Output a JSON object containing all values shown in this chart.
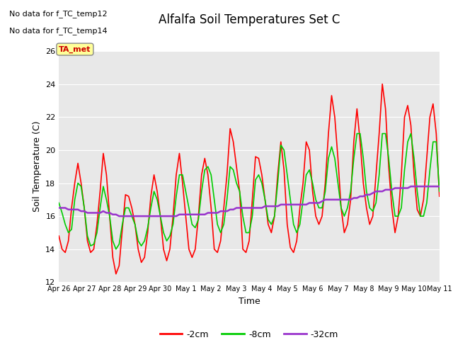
{
  "title": "Alfalfa Soil Temperatures Set C",
  "xlabel": "Time",
  "ylabel": "Soil Temperature (C)",
  "ylim": [
    12,
    26
  ],
  "xlim": [
    0,
    360
  ],
  "no_data_text": [
    "No data for f_TC_temp12",
    "No data for f_TC_temp14"
  ],
  "ta_met_label": "TA_met",
  "ta_met_color": "#cc0000",
  "ta_met_bg": "#ffff99",
  "legend_entries": [
    "-2cm",
    "-8cm",
    "-32cm"
  ],
  "legend_colors": [
    "#ff0000",
    "#00cc00",
    "#9933cc"
  ],
  "x_tick_labels": [
    "Apr 26",
    "Apr 27",
    "Apr 28",
    "Apr 29",
    "Apr 30",
    "May 1",
    "May 2",
    "May 3",
    "May 4",
    "May 5",
    "May 6",
    "May 7",
    "May 8",
    "May 9",
    "May 10",
    "May 11"
  ],
  "x_tick_positions": [
    0,
    24,
    48,
    72,
    96,
    120,
    144,
    168,
    192,
    216,
    240,
    264,
    288,
    312,
    336,
    360
  ],
  "yticks": [
    12,
    14,
    16,
    18,
    20,
    22,
    24,
    26
  ],
  "red_x": [
    0,
    3,
    6,
    9,
    12,
    15,
    18,
    21,
    24,
    27,
    30,
    33,
    36,
    39,
    42,
    45,
    48,
    51,
    54,
    57,
    60,
    63,
    66,
    69,
    72,
    75,
    78,
    81,
    84,
    87,
    90,
    93,
    96,
    99,
    102,
    105,
    108,
    111,
    114,
    117,
    120,
    123,
    126,
    129,
    132,
    135,
    138,
    141,
    144,
    147,
    150,
    153,
    156,
    159,
    162,
    165,
    168,
    171,
    174,
    177,
    180,
    183,
    186,
    189,
    192,
    195,
    198,
    201,
    204,
    207,
    210,
    213,
    216,
    219,
    222,
    225,
    228,
    231,
    234,
    237,
    240,
    243,
    246,
    249,
    252,
    255,
    258,
    261,
    264,
    267,
    270,
    273,
    276,
    279,
    282,
    285,
    288,
    291,
    294,
    297,
    300,
    303,
    306,
    309,
    312,
    315,
    318,
    321,
    324,
    327,
    330,
    333,
    336,
    339,
    342,
    345,
    348,
    351,
    354,
    357,
    360
  ],
  "red_y": [
    14.8,
    14.0,
    13.8,
    14.5,
    16.5,
    18.0,
    19.2,
    18.0,
    16.5,
    14.5,
    13.8,
    14.0,
    15.5,
    17.5,
    19.8,
    18.5,
    16.0,
    13.5,
    12.5,
    13.0,
    15.2,
    17.3,
    17.2,
    16.5,
    15.5,
    14.0,
    13.2,
    13.5,
    15.0,
    17.2,
    18.5,
    17.5,
    16.0,
    14.0,
    13.3,
    14.0,
    16.0,
    18.5,
    19.8,
    18.0,
    16.0,
    14.0,
    13.5,
    14.0,
    16.0,
    18.5,
    19.5,
    18.5,
    16.5,
    14.0,
    13.8,
    14.5,
    16.5,
    18.5,
    21.3,
    20.5,
    19.0,
    17.5,
    14.0,
    13.8,
    14.5,
    17.0,
    19.6,
    19.5,
    18.5,
    17.0,
    15.5,
    15.0,
    16.0,
    18.5,
    20.5,
    18.8,
    15.5,
    14.1,
    13.8,
    14.5,
    16.5,
    18.0,
    20.5,
    20.0,
    17.5,
    16.0,
    15.5,
    16.0,
    18.0,
    21.0,
    23.3,
    22.0,
    19.5,
    16.5,
    15.0,
    15.5,
    17.0,
    20.5,
    22.5,
    20.5,
    18.0,
    16.5,
    15.5,
    16.0,
    18.5,
    21.0,
    24.0,
    22.5,
    19.0,
    16.5,
    15.0,
    16.0,
    18.5,
    22.0,
    22.7,
    21.5,
    18.5,
    16.4,
    16.0,
    17.0,
    19.5,
    22.0,
    22.8,
    21.0,
    17.2
  ],
  "green_x": [
    0,
    3,
    6,
    9,
    12,
    15,
    18,
    21,
    24,
    27,
    30,
    33,
    36,
    39,
    42,
    45,
    48,
    51,
    54,
    57,
    60,
    63,
    66,
    69,
    72,
    75,
    78,
    81,
    84,
    87,
    90,
    93,
    96,
    99,
    102,
    105,
    108,
    111,
    114,
    117,
    120,
    123,
    126,
    129,
    132,
    135,
    138,
    141,
    144,
    147,
    150,
    153,
    156,
    159,
    162,
    165,
    168,
    171,
    174,
    177,
    180,
    183,
    186,
    189,
    192,
    195,
    198,
    201,
    204,
    207,
    210,
    213,
    216,
    219,
    222,
    225,
    228,
    231,
    234,
    237,
    240,
    243,
    246,
    249,
    252,
    255,
    258,
    261,
    264,
    267,
    270,
    273,
    276,
    279,
    282,
    285,
    288,
    291,
    294,
    297,
    300,
    303,
    306,
    309,
    312,
    315,
    318,
    321,
    324,
    327,
    330,
    333,
    336,
    339,
    342,
    345,
    348,
    351,
    354,
    357,
    360
  ],
  "green_y": [
    16.8,
    16.2,
    15.5,
    15.0,
    15.2,
    17.0,
    18.0,
    17.8,
    16.5,
    14.8,
    14.2,
    14.3,
    15.0,
    16.5,
    17.8,
    17.0,
    16.0,
    14.5,
    14.0,
    14.3,
    15.5,
    16.5,
    16.5,
    16.0,
    15.5,
    14.5,
    14.2,
    14.5,
    15.3,
    16.5,
    17.5,
    17.0,
    16.0,
    15.0,
    14.5,
    14.8,
    15.5,
    17.2,
    18.5,
    18.5,
    17.5,
    16.5,
    15.5,
    15.3,
    15.8,
    17.5,
    18.8,
    19.0,
    18.5,
    17.0,
    15.5,
    15.0,
    15.5,
    17.0,
    19.0,
    18.8,
    18.0,
    17.5,
    16.0,
    15.0,
    15.0,
    16.0,
    18.2,
    18.5,
    18.0,
    17.0,
    15.8,
    15.5,
    16.0,
    18.0,
    20.3,
    20.0,
    18.5,
    17.0,
    15.5,
    15.0,
    15.5,
    17.0,
    18.5,
    18.8,
    18.0,
    17.0,
    16.5,
    16.5,
    17.5,
    19.5,
    20.2,
    19.5,
    18.0,
    16.5,
    16.0,
    16.5,
    17.5,
    19.5,
    21.0,
    21.0,
    19.5,
    17.5,
    16.5,
    16.3,
    16.8,
    18.5,
    21.0,
    21.0,
    19.5,
    17.5,
    16.0,
    16.0,
    16.5,
    18.8,
    20.5,
    21.0,
    19.5,
    17.5,
    16.0,
    16.0,
    16.8,
    18.8,
    20.5,
    20.5,
    17.5
  ],
  "purple_x": [
    0,
    3,
    6,
    9,
    12,
    15,
    18,
    21,
    24,
    27,
    30,
    33,
    36,
    39,
    42,
    45,
    48,
    51,
    54,
    57,
    60,
    63,
    66,
    69,
    72,
    75,
    78,
    81,
    84,
    87,
    90,
    93,
    96,
    99,
    102,
    105,
    108,
    111,
    114,
    117,
    120,
    123,
    126,
    129,
    132,
    135,
    138,
    141,
    144,
    147,
    150,
    153,
    156,
    159,
    162,
    165,
    168,
    171,
    174,
    177,
    180,
    183,
    186,
    189,
    192,
    195,
    198,
    201,
    204,
    207,
    210,
    213,
    216,
    219,
    222,
    225,
    228,
    231,
    234,
    237,
    240,
    243,
    246,
    249,
    252,
    255,
    258,
    261,
    264,
    267,
    270,
    273,
    276,
    279,
    282,
    285,
    288,
    291,
    294,
    297,
    300,
    303,
    306,
    309,
    312,
    315,
    318,
    321,
    324,
    327,
    330,
    333,
    336,
    339,
    342,
    345,
    348,
    351,
    354,
    357,
    360
  ],
  "purple_y": [
    16.5,
    16.5,
    16.5,
    16.4,
    16.4,
    16.4,
    16.4,
    16.3,
    16.3,
    16.2,
    16.2,
    16.2,
    16.2,
    16.2,
    16.3,
    16.2,
    16.2,
    16.1,
    16.1,
    16.0,
    16.0,
    16.0,
    16.0,
    16.0,
    16.0,
    16.0,
    16.0,
    16.0,
    16.0,
    16.0,
    16.0,
    16.0,
    16.0,
    16.0,
    16.0,
    16.0,
    16.0,
    16.0,
    16.1,
    16.1,
    16.1,
    16.1,
    16.1,
    16.1,
    16.1,
    16.1,
    16.1,
    16.2,
    16.2,
    16.2,
    16.2,
    16.3,
    16.3,
    16.3,
    16.4,
    16.4,
    16.5,
    16.5,
    16.5,
    16.5,
    16.5,
    16.5,
    16.5,
    16.5,
    16.5,
    16.6,
    16.6,
    16.6,
    16.6,
    16.6,
    16.7,
    16.7,
    16.7,
    16.7,
    16.7,
    16.7,
    16.7,
    16.7,
    16.7,
    16.8,
    16.8,
    16.8,
    16.8,
    16.9,
    17.0,
    17.0,
    17.0,
    17.0,
    17.0,
    17.0,
    17.0,
    17.0,
    17.0,
    17.1,
    17.1,
    17.2,
    17.2,
    17.3,
    17.3,
    17.4,
    17.5,
    17.5,
    17.5,
    17.6,
    17.6,
    17.6,
    17.7,
    17.7,
    17.7,
    17.7,
    17.7,
    17.8,
    17.8,
    17.8,
    17.8,
    17.8,
    17.8,
    17.8,
    17.8,
    17.8,
    17.8
  ]
}
